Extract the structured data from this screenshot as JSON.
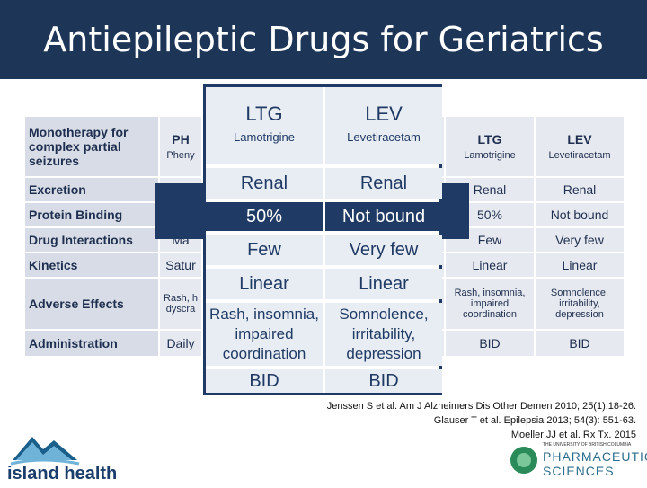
{
  "title": "Antiepileptic Drugs for Geriatrics",
  "table": {
    "row_labels": [
      "Monotherapy for complex partial seizures",
      "Excretion",
      "Protein Binding",
      "Drug Interactions",
      "Kinetics",
      "Adverse Effects",
      "Administration"
    ],
    "partial_col": {
      "header_abbr": "PH",
      "header_name": "Pheny",
      "drug_interactions": "Ma",
      "kinetics": "Satur",
      "adverse": "Rash, h dyscra",
      "administration": "Daily"
    },
    "ltg": {
      "abbr": "LTG",
      "name": "Lamotrigine",
      "excretion": "Renal",
      "protein": "50%",
      "interactions": "Few",
      "kinetics": "Linear",
      "adverse": "Rash, insomnia, impaired coordination",
      "administration": "BID"
    },
    "lev": {
      "abbr": "LEV",
      "name": "Levetiracetam",
      "excretion": "Renal",
      "protein": "Not bound",
      "interactions": "Very few",
      "kinetics": "Linear",
      "adverse": "Somnolence, irritability, depression",
      "administration": "BID"
    }
  },
  "zoom": {
    "ltg": {
      "abbr": "LTG",
      "name": "Lamotrigine",
      "excretion": "Renal",
      "protein": "50%",
      "interactions": "Few",
      "kinetics": "Linear",
      "adverse": "Rash, insomnia, impaired coordination",
      "administration": "BID"
    },
    "lev": {
      "abbr": "LEV",
      "name": "Levetiracetam",
      "excretion": "Renal",
      "protein": "Not bound",
      "interactions": "Very few",
      "kinetics": "Linear",
      "adverse": "Somnolence, irritability, depression",
      "administration": "BID"
    }
  },
  "references": [
    "Jenssen S et al. Am J Alzheimers Dis Other Demen 2010; 25(1):18-26.",
    "Glauser T et al. Epilepsia 2013; 54(3): 551-63.",
    "Moeller JJ et al. Rx Tx. 2015"
  ],
  "logos": {
    "left": "island health",
    "right_top": "THE UNIVERSITY OF BRITISH COLUMBIA",
    "right_mid": "PHARMACEUTICAL",
    "right_bottom": "SCIENCES"
  },
  "colors": {
    "navy": "#1f3a64",
    "title_bg": "#1d3557",
    "cell": "#e8ecf3"
  }
}
